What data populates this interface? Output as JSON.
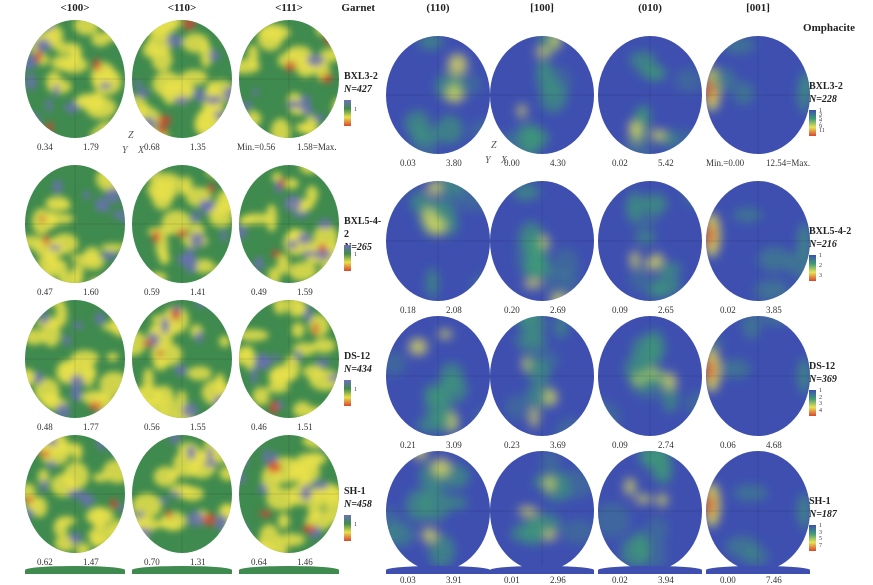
{
  "garnet": {
    "title": "Garnet",
    "columns": [
      "<100>",
      "<110>",
      "<111>"
    ],
    "samples": [
      {
        "id": "BXL3-2",
        "n": "N=427",
        "ranges": [
          [
            "0.34",
            "1.79"
          ],
          [
            "0.68",
            "1.35"
          ],
          [
            "Min.=0.56",
            "1.58=Max."
          ]
        ],
        "cbar_ticks": [
          "1"
        ]
      },
      {
        "id": "BXL5-4-2",
        "n": "N=265",
        "ranges": [
          [
            "0.47",
            "1.60"
          ],
          [
            "0.59",
            "1.41"
          ],
          [
            "0.49",
            "1.59"
          ]
        ],
        "cbar_ticks": [
          "1"
        ]
      },
      {
        "id": "DS-12",
        "n": "N=434",
        "ranges": [
          [
            "0.48",
            "1.77"
          ],
          [
            "0.56",
            "1.55"
          ],
          [
            "0.46",
            "1.51"
          ]
        ],
        "cbar_ticks": [
          "1"
        ]
      },
      {
        "id": "SH-1",
        "n": "N=458",
        "ranges": [
          [
            "0.62",
            "1.47"
          ],
          [
            "0.70",
            "1.31"
          ],
          [
            "0.64",
            "1.46"
          ]
        ],
        "cbar_ticks": [
          "1"
        ]
      }
    ],
    "axes": {
      "z": "Z",
      "y": "Y",
      "x": "X"
    }
  },
  "omphacite": {
    "title": "Omphacite",
    "columns": [
      "(110)",
      "[100]",
      "(010)",
      "[001]"
    ],
    "samples": [
      {
        "id": "BXL3-2",
        "n": "N=228",
        "ranges": [
          [
            "0.03",
            "3.80"
          ],
          [
            "0.00",
            "4.30"
          ],
          [
            "0.02",
            "5.42"
          ],
          [
            "Min.=0.00",
            "12.54=Max."
          ]
        ],
        "cbar_ticks": [
          "1",
          "3",
          "5",
          "7",
          "9",
          "11"
        ]
      },
      {
        "id": "BXL5-4-2",
        "n": "N=216",
        "ranges": [
          [
            "0.18",
            "2.08"
          ],
          [
            "0.20",
            "2.69"
          ],
          [
            "0.09",
            "2.65"
          ],
          [
            "0.02",
            "3.85"
          ]
        ],
        "cbar_ticks": [
          "1",
          "2",
          "3"
        ]
      },
      {
        "id": "DS-12",
        "n": "N=369",
        "ranges": [
          [
            "0.21",
            "3.09"
          ],
          [
            "0.23",
            "3.69"
          ],
          [
            "0.09",
            "2.74"
          ],
          [
            "0.06",
            "4.68"
          ]
        ],
        "cbar_ticks": [
          "1",
          "2",
          "3",
          "4"
        ]
      },
      {
        "id": "SH-1",
        "n": "N=187",
        "ranges": [
          [
            "0.03",
            "3.91"
          ],
          [
            "0.01",
            "2.96"
          ],
          [
            "0.02",
            "3.94"
          ],
          [
            "0.00",
            "7.46"
          ]
        ],
        "cbar_ticks": [
          "1",
          "3",
          "5",
          "7"
        ]
      }
    ],
    "axes": {
      "z": "Z",
      "y": "Y",
      "x": "X"
    }
  },
  "colors": {
    "garnet_base": "#3f8a4e",
    "garnet_high": "#e8e04a",
    "garnet_low": "#6c6fb6",
    "garnet_max": "#d9452f",
    "omph_base": "#3e4fb0",
    "omph_mid": "#3f9a77",
    "omph_high": "#e7e258",
    "omph_max": "#d9452f"
  }
}
